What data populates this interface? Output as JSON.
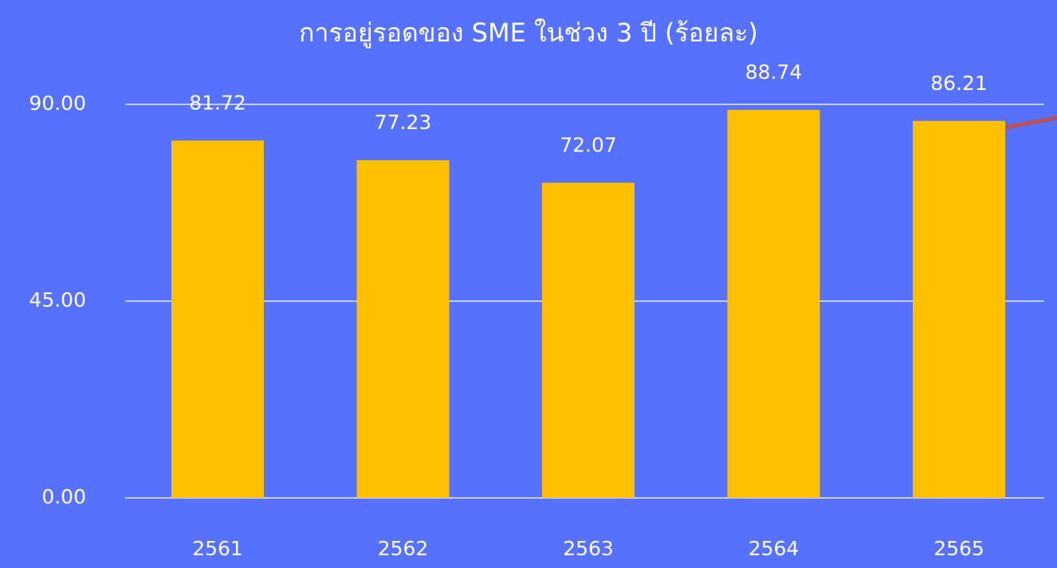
{
  "chart_data": {
    "type": "bar",
    "title": "การอยู่รอดของ SME ในช่วง 3 ปี (ร้อยละ)",
    "categories": [
      "2561",
      "2562",
      "2563",
      "2564",
      "2565"
    ],
    "values": [
      81.72,
      77.23,
      72.07,
      88.74,
      86.21
    ],
    "color": "#ffc000",
    "ylim": [
      0,
      90
    ],
    "yticks": [
      {
        "value": 0,
        "label": "0.00"
      },
      {
        "value": 45,
        "label": "45.00"
      },
      {
        "value": 90,
        "label": "90.00"
      }
    ],
    "grid": true
  }
}
